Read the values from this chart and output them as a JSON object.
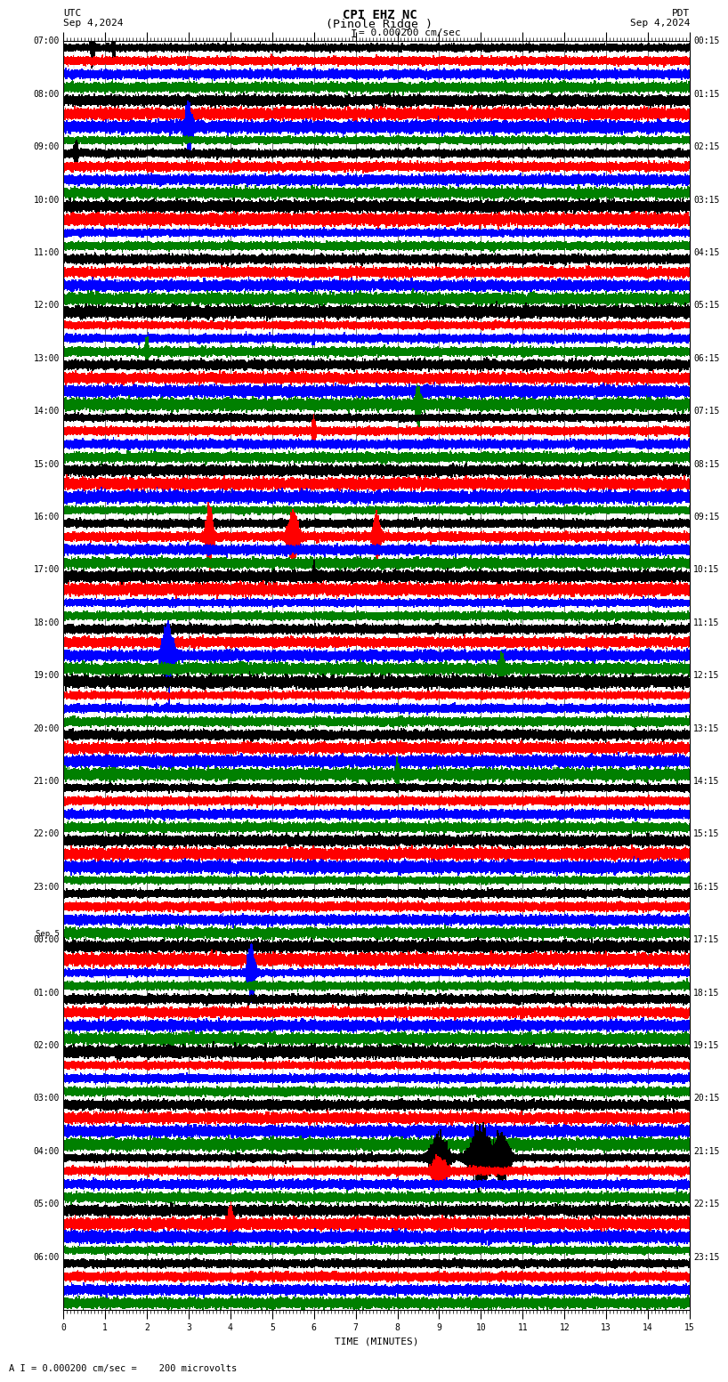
{
  "title_line1": "CPI EHZ NC",
  "title_line2": "(Pinole Ridge )",
  "scale_label": "= 0.000200 cm/sec",
  "utc_label": "UTC",
  "utc_date": "Sep 4,2024",
  "pdt_label": "PDT",
  "pdt_date": "Sep 4,2024",
  "xlabel": "TIME (MINUTES)",
  "bottom_label": "A I = 0.000200 cm/sec =    200 microvolts",
  "left_times_utc": [
    "07:00",
    "08:00",
    "09:00",
    "10:00",
    "11:00",
    "12:00",
    "13:00",
    "14:00",
    "15:00",
    "16:00",
    "17:00",
    "18:00",
    "19:00",
    "20:00",
    "21:00",
    "22:00",
    "23:00",
    "Sep 5\n00:00",
    "01:00",
    "02:00",
    "03:00",
    "04:00",
    "05:00",
    "06:00"
  ],
  "right_times_pdt": [
    "00:15",
    "01:15",
    "02:15",
    "03:15",
    "04:15",
    "05:15",
    "06:15",
    "07:15",
    "08:15",
    "09:15",
    "10:15",
    "11:15",
    "12:15",
    "13:15",
    "14:15",
    "15:15",
    "16:15",
    "17:15",
    "18:15",
    "19:15",
    "20:15",
    "21:15",
    "22:15",
    "23:15"
  ],
  "n_rows": 24,
  "n_traces_per_row": 4,
  "trace_colors": [
    "black",
    "red",
    "blue",
    "green"
  ],
  "bg_color": "white",
  "minutes": 15,
  "sample_rate": 50,
  "noise_level": 0.3,
  "title_fontsize": 10,
  "label_fontsize": 8,
  "tick_fontsize": 7,
  "grid_color": "#888888",
  "grid_major_color": "#555555"
}
